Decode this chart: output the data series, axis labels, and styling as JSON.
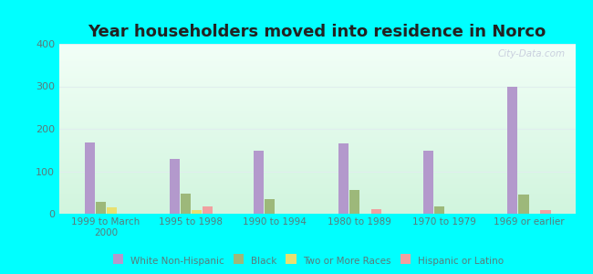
{
  "title": "Year householders moved into residence in Norco",
  "categories": [
    "1999 to March\n2000",
    "1995 to 1998",
    "1990 to 1994",
    "1980 to 1989",
    "1970 to 1979",
    "1969 or earlier"
  ],
  "series": {
    "White Non-Hispanic": [
      168,
      128,
      148,
      165,
      148,
      300
    ],
    "Black": [
      28,
      47,
      35,
      55,
      18,
      45
    ],
    "Two or More Races": [
      15,
      8,
      0,
      0,
      0,
      0
    ],
    "Hispanic or Latino": [
      0,
      18,
      0,
      10,
      0,
      8
    ]
  },
  "colors": {
    "White Non-Hispanic": "#b399cc",
    "Black": "#9db87a",
    "Two or More Races": "#e8e070",
    "Hispanic or Latino": "#f0a0a0"
  },
  "ylim": [
    0,
    400
  ],
  "yticks": [
    0,
    100,
    200,
    300,
    400
  ],
  "outer_bg": "#00ffff",
  "plot_bg_top": "#f0fafa",
  "plot_bg_bottom": "#d0f0d8",
  "watermark": "City-Data.com",
  "bar_width": 0.12,
  "title_fontsize": 13,
  "tick_color": "#5a7a7a",
  "grid_color": "#e0eeee"
}
